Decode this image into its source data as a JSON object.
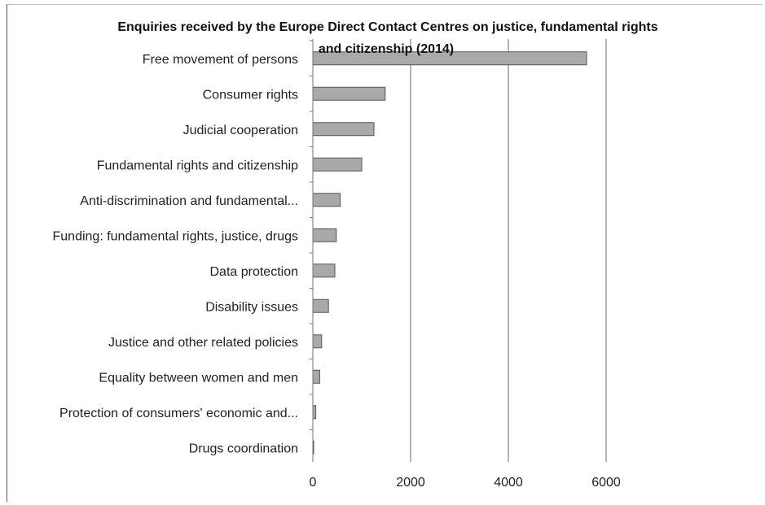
{
  "chart_data": {
    "type": "bar",
    "orientation": "horizontal",
    "title_lines": [
      "Enquiries received by the Europe Direct Contact Centres on justice, fundamental rights",
      "and citizenship (2014)"
    ],
    "categories": [
      "Free movement of persons",
      "Consumer rights",
      "Judicial cooperation",
      "Fundamental rights and citizenship",
      "Anti-discrimination and fundamental...",
      "Funding: fundamental rights, justice, drugs",
      "Data protection",
      "Disability issues",
      "Justice and other related policies",
      "Equality between women and men",
      "Protection of consumers' economic and...",
      "Drugs coordination"
    ],
    "values": [
      5600,
      1480,
      1250,
      1000,
      560,
      480,
      450,
      320,
      180,
      140,
      60,
      10
    ],
    "xlim": [
      0,
      7000
    ],
    "xticks": [
      0,
      2000,
      4000,
      6000
    ],
    "xtick_labels": [
      "0",
      "2000",
      "4000",
      "6000"
    ],
    "grid": "vertical",
    "legend": "none",
    "bar_color": "#a9a9a9"
  }
}
